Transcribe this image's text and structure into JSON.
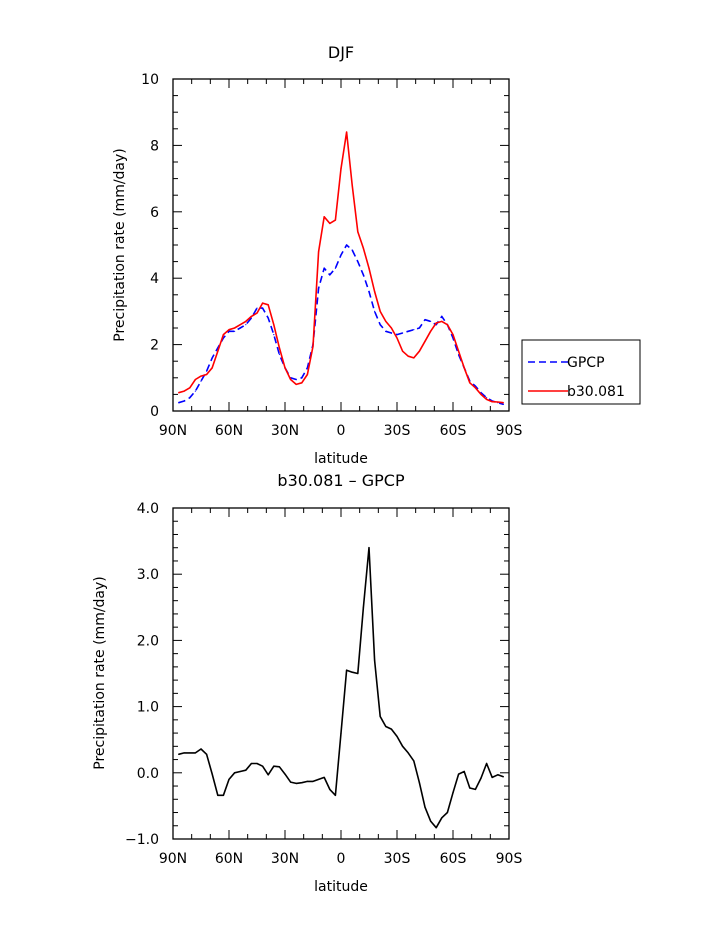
{
  "chart_data": [
    {
      "type": "line",
      "title": "DJF",
      "xlabel": "latitude",
      "ylabel": "Precipitation rate (mm/day)",
      "xlim": [
        90,
        -90
      ],
      "ylim": [
        0,
        10
      ],
      "x_ticks": [
        90,
        60,
        30,
        0,
        -30,
        -60,
        -90
      ],
      "x_tick_labels": [
        "90N",
        "60N",
        "30N",
        "0",
        "30S",
        "60S",
        "90S"
      ],
      "y_ticks": [
        0,
        2,
        4,
        6,
        8,
        10
      ],
      "y_tick_labels": [
        "0",
        "2",
        "4",
        "6",
        "8",
        "10"
      ],
      "legend": {
        "placement": "right",
        "entries": [
          "GPCP",
          "b30.081"
        ]
      },
      "grid": false,
      "series": [
        {
          "name": "GPCP",
          "color": "#0000ff",
          "dash": "dashed",
          "x": [
            87,
            84,
            81,
            78,
            75,
            72,
            69,
            66,
            63,
            60,
            57,
            54,
            51,
            48,
            45,
            42,
            39,
            36,
            33,
            30,
            27,
            24,
            21,
            18,
            15,
            12,
            9,
            6,
            3,
            0,
            -3,
            -6,
            -9,
            -12,
            -15,
            -18,
            -21,
            -24,
            -27,
            -30,
            -33,
            -36,
            -39,
            -42,
            -45,
            -48,
            -51,
            -54,
            -57,
            -60,
            -63,
            -66,
            -69,
            -72,
            -75,
            -78,
            -81,
            -84,
            -87
          ],
          "y": [
            0.25,
            0.3,
            0.4,
            0.6,
            0.9,
            1.2,
            1.6,
            1.9,
            2.2,
            2.4,
            2.4,
            2.5,
            2.6,
            2.8,
            3.1,
            3.1,
            2.8,
            2.3,
            1.7,
            1.3,
            1.0,
            0.95,
            1.0,
            1.3,
            2.0,
            3.7,
            4.3,
            4.1,
            4.3,
            4.7,
            5.0,
            4.85,
            4.5,
            4.1,
            3.6,
            3.0,
            2.6,
            2.4,
            2.35,
            2.3,
            2.35,
            2.4,
            2.45,
            2.5,
            2.75,
            2.7,
            2.6,
            2.85,
            2.6,
            2.2,
            1.7,
            1.3,
            0.9,
            0.75,
            0.55,
            0.4,
            0.3,
            0.25,
            0.2
          ]
        },
        {
          "name": "b30.081",
          "color": "#ff0000",
          "dash": "solid",
          "x": [
            87,
            84,
            81,
            78,
            75,
            72,
            69,
            66,
            63,
            60,
            57,
            54,
            51,
            48,
            45,
            42,
            39,
            36,
            33,
            30,
            27,
            24,
            21,
            18,
            15,
            12,
            9,
            6,
            3,
            0,
            -3,
            -6,
            -9,
            -12,
            -15,
            -18,
            -21,
            -24,
            -27,
            -30,
            -33,
            -36,
            -39,
            -42,
            -45,
            -48,
            -51,
            -54,
            -57,
            -60,
            -63,
            -66,
            -69,
            -72,
            -75,
            -78,
            -81,
            -84,
            -87
          ],
          "y": [
            0.55,
            0.6,
            0.7,
            0.95,
            1.05,
            1.1,
            1.3,
            1.8,
            2.3,
            2.45,
            2.5,
            2.6,
            2.7,
            2.85,
            2.95,
            3.25,
            3.2,
            2.6,
            1.9,
            1.3,
            0.95,
            0.8,
            0.85,
            1.1,
            1.95,
            4.8,
            5.85,
            5.65,
            5.75,
            7.3,
            8.4,
            6.8,
            5.4,
            4.9,
            4.3,
            3.6,
            3.0,
            2.7,
            2.5,
            2.2,
            1.8,
            1.65,
            1.6,
            1.8,
            2.1,
            2.4,
            2.65,
            2.7,
            2.6,
            2.3,
            1.8,
            1.3,
            0.85,
            0.7,
            0.5,
            0.35,
            0.28,
            0.27,
            0.25
          ]
        }
      ]
    },
    {
      "type": "line",
      "title": "b30.081 – GPCP",
      "xlabel": "latitude",
      "ylabel": "Precipitation rate (mm/day)",
      "xlim": [
        90,
        -90
      ],
      "ylim": [
        -1.0,
        4.0
      ],
      "x_ticks": [
        90,
        60,
        30,
        0,
        -30,
        -60,
        -90
      ],
      "x_tick_labels": [
        "90N",
        "60N",
        "30N",
        "0",
        "30S",
        "60S",
        "90S"
      ],
      "y_ticks": [
        -1.0,
        0.0,
        1.0,
        2.0,
        3.0,
        4.0
      ],
      "y_tick_labels": [
        "−1.0",
        "0.0",
        "1.0",
        "2.0",
        "3.0",
        "4.0"
      ],
      "grid": false,
      "series": [
        {
          "color": "#000000",
          "dash": "solid",
          "x": [
            87,
            84,
            81,
            78,
            75,
            72,
            69,
            66,
            63,
            60,
            57,
            54,
            51,
            48,
            45,
            42,
            39,
            36,
            33,
            30,
            27,
            24,
            21,
            18,
            15,
            12,
            9,
            6,
            3,
            0,
            -3,
            -6,
            -9,
            -12,
            -15,
            -18,
            -21,
            -24,
            -27,
            -30,
            -33,
            -36,
            -39,
            -42,
            -45,
            -48,
            -51,
            -54,
            -57,
            -60,
            -63,
            -66,
            -69,
            -72,
            -75,
            -78,
            -81,
            -84,
            -87
          ],
          "y": [
            0.28,
            0.3,
            0.3,
            0.3,
            0.36,
            0.28,
            -0.02,
            -0.34,
            -0.34,
            -0.1,
            0.0,
            0.02,
            0.04,
            0.14,
            0.14,
            0.1,
            -0.03,
            0.1,
            0.09,
            -0.02,
            -0.14,
            -0.16,
            -0.15,
            -0.13,
            -0.13,
            -0.1,
            -0.07,
            -0.25,
            -0.34,
            0.6,
            1.55,
            1.52,
            1.5,
            2.5,
            3.4,
            1.7,
            0.85,
            0.7,
            0.66,
            0.55,
            0.4,
            0.3,
            0.18,
            -0.15,
            -0.52,
            -0.73,
            -0.83,
            -0.68,
            -0.6,
            -0.3,
            -0.02,
            0.02,
            -0.23,
            -0.25,
            -0.08,
            0.14,
            -0.07,
            -0.03,
            -0.06
          ]
        }
      ]
    }
  ]
}
